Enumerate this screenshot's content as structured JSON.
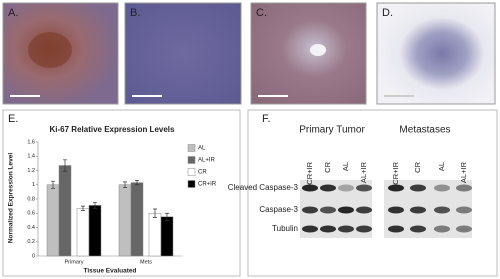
{
  "panel_labels": [
    "A.",
    "B.",
    "C.",
    "D.",
    "E.",
    "F."
  ],
  "chart_data": {
    "type": "bar",
    "title": "Ki-67 Relative Expression Levels",
    "ylabel": "Normalized Expression Level",
    "xlabel": "Tissue Evaluated",
    "categories": [
      "Primary",
      "Mets"
    ],
    "series": [
      {
        "name": "AL",
        "color": "#bfbfbf",
        "values": [
          1.0,
          1.0
        ],
        "errors": [
          0.05,
          0.04
        ]
      },
      {
        "name": "AL+IR",
        "color": "#666666",
        "values": [
          1.27,
          1.03
        ],
        "errors": [
          0.08,
          0.03
        ]
      },
      {
        "name": "CR",
        "color": "#ffffff",
        "values": [
          0.67,
          0.6
        ],
        "errors": [
          0.03,
          0.06
        ]
      },
      {
        "name": "CR+IR",
        "color": "#000000",
        "values": [
          0.71,
          0.55
        ],
        "errors": [
          0.04,
          0.05
        ]
      }
    ],
    "ylim": [
      0,
      1.6
    ],
    "yticks": [
      0,
      0.2,
      0.4,
      0.6,
      0.8,
      1,
      1.2,
      1.4,
      1.6
    ]
  },
  "blot": {
    "groups": [
      "Primary Tumor",
      "Metastases"
    ],
    "primary_lanes": [
      "CR+IR",
      "CR",
      "AL",
      "AL+IR"
    ],
    "metastases_lanes": [
      "CR+IR",
      "CR",
      "AL",
      "AL+IR"
    ],
    "rows": [
      "Cleaved Caspase-3",
      "Caspase-3",
      "Tubulin"
    ]
  }
}
